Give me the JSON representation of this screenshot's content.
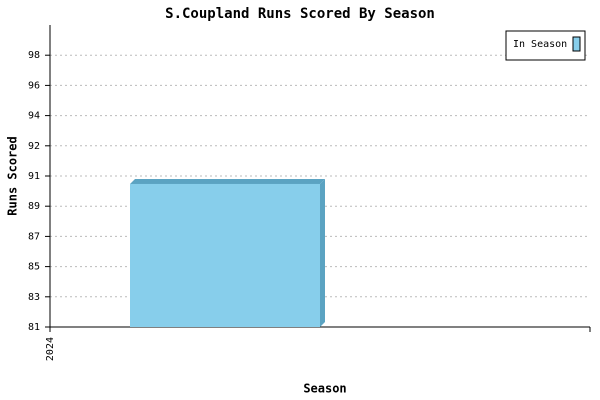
{
  "chart_data": {
    "type": "bar",
    "title": "S.Coupland Runs Scored By Season",
    "x_label": "Season",
    "y_label": "Runs Scored",
    "categories": [
      "2024"
    ],
    "series": [
      {
        "name": "In Season",
        "color": "#87ceeb",
        "values": [
          90
        ]
      }
    ],
    "ylim": [
      81,
      100
    ],
    "yticks": [
      81,
      {
        "value": 82.9,
        "label": "83"
      },
      {
        "value": 84.8,
        "label": "85"
      },
      {
        "value": 86.7,
        "label": "87"
      },
      {
        "value": 88.6,
        "label": "89"
      },
      {
        "value": 90.5,
        "label": "91"
      },
      {
        "value": 92.4,
        "label": "92"
      },
      {
        "value": 94.3,
        "label": "94"
      },
      {
        "value": 96.2,
        "label": "96"
      },
      {
        "value": 98.1,
        "label": "98"
      }
    ],
    "grid": true,
    "legend": "top-right"
  }
}
